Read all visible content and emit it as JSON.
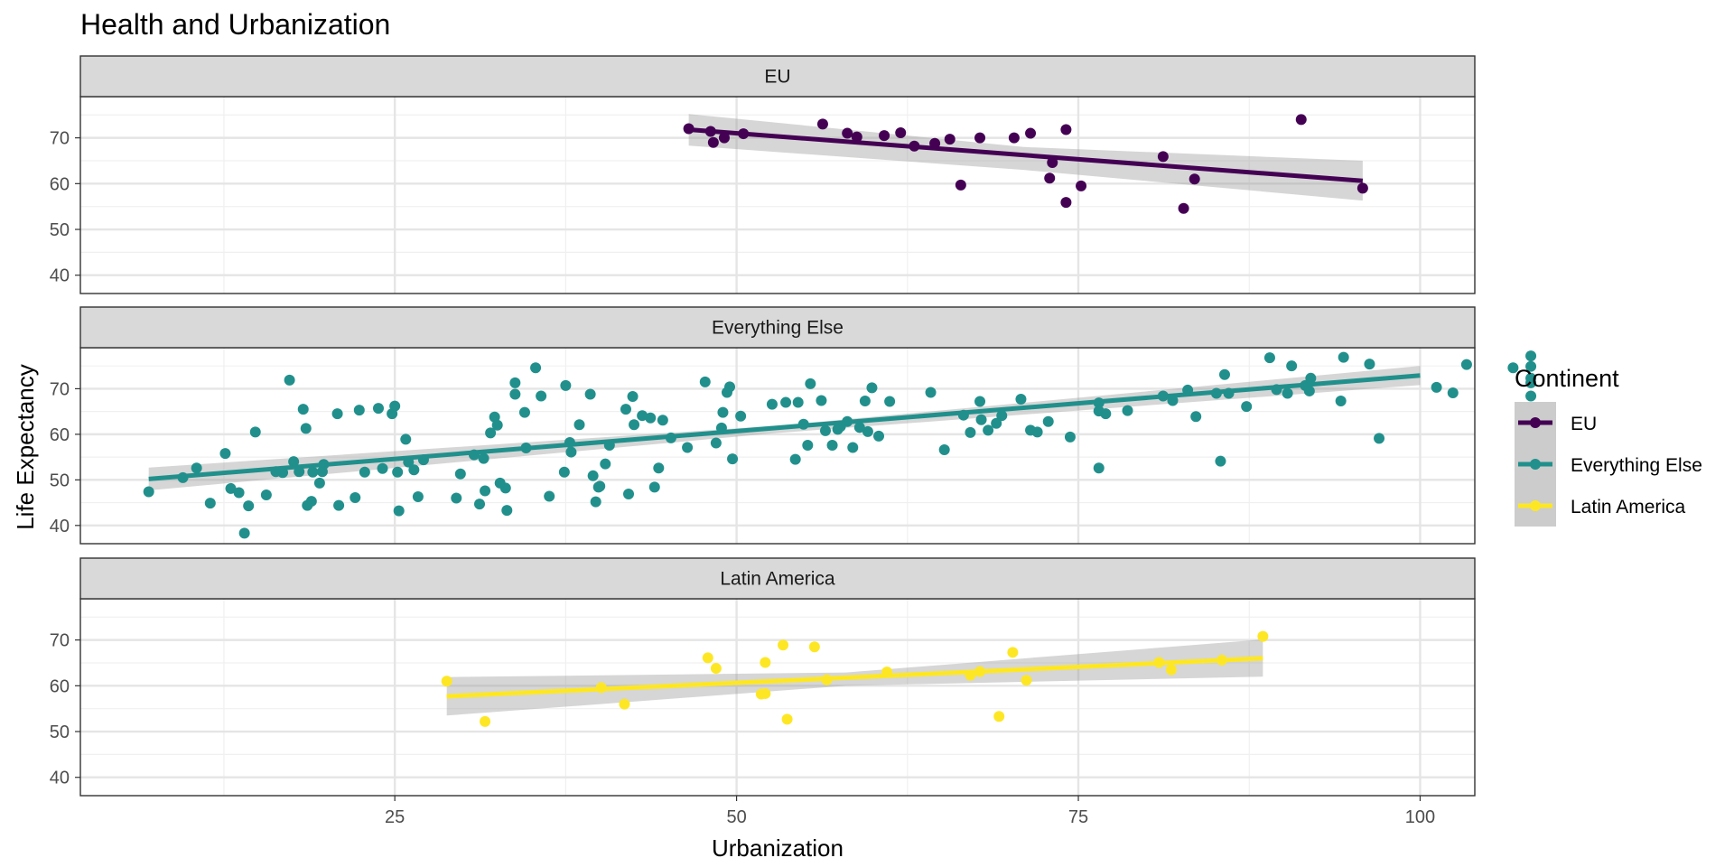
{
  "chart_data": {
    "type": "scatter",
    "title": "Health and Urbanization",
    "xlabel": "Urbanization",
    "ylabel": "Life Expectancy",
    "xlim": [
      2,
      104
    ],
    "ylim": [
      36,
      79
    ],
    "x_ticks": [
      25,
      50,
      75,
      100
    ],
    "y_ticks": [
      40,
      50,
      60,
      70
    ],
    "legend": {
      "title": "Continent",
      "position": "right"
    },
    "smooth": "linear fit with confidence band",
    "grid": true,
    "series": [
      {
        "name": "EU",
        "color": "#440154",
        "fit": {
          "x": [
            46.5,
            95.8
          ],
          "y": [
            71.8,
            60.6
          ]
        },
        "band": {
          "x": [
            46.5,
            71,
            95.8
          ],
          "upper": [
            75.2,
            68.0,
            65.0
          ],
          "lower": [
            68.3,
            63.0,
            56.3
          ]
        },
        "points": [
          [
            46.5,
            72.0
          ],
          [
            48.1,
            71.4
          ],
          [
            48.3,
            69.0
          ],
          [
            49.1,
            70.0
          ],
          [
            50.5,
            70.9
          ],
          [
            56.3,
            73.0
          ],
          [
            58.1,
            71.0
          ],
          [
            58.8,
            70.2
          ],
          [
            60.8,
            70.5
          ],
          [
            62.0,
            71.1
          ],
          [
            63.0,
            68.2
          ],
          [
            64.5,
            68.8
          ],
          [
            65.6,
            69.7
          ],
          [
            66.4,
            59.7
          ],
          [
            67.8,
            70.0
          ],
          [
            70.3,
            70.0
          ],
          [
            71.5,
            71.0
          ],
          [
            72.9,
            61.2
          ],
          [
            73.1,
            64.6
          ],
          [
            74.1,
            71.8
          ],
          [
            74.1,
            55.9
          ],
          [
            75.2,
            59.5
          ],
          [
            81.2,
            65.9
          ],
          [
            82.7,
            54.6
          ],
          [
            83.5,
            61.0
          ],
          [
            91.3,
            74.0
          ],
          [
            95.8,
            59.0
          ]
        ]
      },
      {
        "name": "Everything Else",
        "color": "#21908C",
        "fit": {
          "x": [
            7,
            100
          ],
          "y": [
            50.2,
            72.9
          ]
        },
        "band": {
          "x": [
            7,
            53,
            100
          ],
          "upper": [
            52.7,
            61.9,
            75.0
          ],
          "lower": [
            47.7,
            60.3,
            70.8
          ]
        },
        "points": [
          [
            7,
            47.4
          ],
          [
            9.5,
            50.5
          ],
          [
            10.5,
            52.6
          ],
          [
            11.5,
            44.9
          ],
          [
            12.6,
            55.8
          ],
          [
            13.0,
            48.1
          ],
          [
            13.6,
            47.2
          ],
          [
            14.0,
            38.3
          ],
          [
            14.3,
            44.3
          ],
          [
            14.8,
            60.5
          ],
          [
            15.6,
            46.7
          ],
          [
            16.3,
            51.8
          ],
          [
            16.8,
            51.6
          ],
          [
            17.3,
            71.9
          ],
          [
            17.6,
            54.0
          ],
          [
            18.0,
            51.8
          ],
          [
            18.3,
            65.5
          ],
          [
            18.5,
            61.3
          ],
          [
            18.6,
            44.4
          ],
          [
            18.9,
            45.3
          ],
          [
            19.0,
            51.7
          ],
          [
            19.5,
            49.3
          ],
          [
            19.7,
            51.8
          ],
          [
            19.8,
            53.4
          ],
          [
            20.8,
            64.5
          ],
          [
            20.9,
            44.4
          ],
          [
            22.1,
            46.1
          ],
          [
            22.4,
            65.3
          ],
          [
            22.8,
            51.7
          ],
          [
            23.8,
            65.7
          ],
          [
            24.1,
            52.5
          ],
          [
            24.8,
            64.5
          ],
          [
            25.0,
            66.2
          ],
          [
            25.2,
            51.7
          ],
          [
            25.3,
            43.2
          ],
          [
            25.8,
            58.9
          ],
          [
            26.0,
            53.9
          ],
          [
            26.4,
            52.2
          ],
          [
            26.7,
            46.3
          ],
          [
            27.1,
            54.4
          ],
          [
            29.5,
            46.0
          ],
          [
            29.8,
            51.3
          ],
          [
            30.8,
            55.5
          ],
          [
            31.2,
            44.7
          ],
          [
            31.5,
            54.7
          ],
          [
            31.6,
            47.6
          ],
          [
            32.0,
            60.3
          ],
          [
            32.3,
            63.8
          ],
          [
            32.5,
            62.0
          ],
          [
            32.7,
            49.3
          ],
          [
            33.1,
            48.2
          ],
          [
            33.2,
            43.3
          ],
          [
            33.8,
            68.8
          ],
          [
            33.8,
            71.3
          ],
          [
            34.5,
            64.8
          ],
          [
            34.6,
            57.0
          ],
          [
            35.3,
            74.6
          ],
          [
            35.7,
            68.4
          ],
          [
            36.3,
            46.4
          ],
          [
            37.4,
            51.7
          ],
          [
            37.5,
            70.7
          ],
          [
            37.8,
            58.2
          ],
          [
            37.9,
            56.1
          ],
          [
            38.5,
            62.1
          ],
          [
            39.3,
            68.8
          ],
          [
            39.5,
            50.9
          ],
          [
            39.7,
            45.2
          ],
          [
            39.9,
            48.4
          ],
          [
            40.0,
            48.6
          ],
          [
            40.4,
            53.5
          ],
          [
            40.7,
            57.6
          ],
          [
            41.9,
            65.5
          ],
          [
            42.1,
            46.9
          ],
          [
            42.4,
            68.3
          ],
          [
            42.5,
            62.1
          ],
          [
            43.1,
            64.1
          ],
          [
            43.7,
            63.6
          ],
          [
            44.0,
            48.4
          ],
          [
            44.3,
            52.6
          ],
          [
            44.6,
            63.1
          ],
          [
            45.2,
            59.2
          ],
          [
            46.4,
            57.1
          ],
          [
            47.7,
            71.5
          ],
          [
            48.5,
            58.1
          ],
          [
            48.9,
            61.4
          ],
          [
            49.0,
            64.8
          ],
          [
            49.3,
            69.2
          ],
          [
            49.5,
            70.4
          ],
          [
            49.7,
            54.6
          ],
          [
            50.3,
            64.0
          ],
          [
            52.6,
            66.6
          ],
          [
            53.6,
            67.0
          ],
          [
            54.3,
            54.5
          ],
          [
            54.5,
            67.0
          ],
          [
            54.9,
            62.2
          ],
          [
            55.2,
            57.6
          ],
          [
            55.4,
            71.1
          ],
          [
            56.2,
            67.4
          ],
          [
            56.5,
            60.8
          ],
          [
            57.0,
            57.6
          ],
          [
            57.4,
            61.1
          ],
          [
            57.6,
            61.7
          ],
          [
            58.1,
            62.8
          ],
          [
            58.5,
            57.1
          ],
          [
            59.0,
            61.5
          ],
          [
            59.4,
            67.3
          ],
          [
            59.6,
            60.6
          ],
          [
            59.9,
            70.2
          ],
          [
            60.4,
            59.6
          ],
          [
            61.2,
            67.2
          ],
          [
            64.2,
            69.2
          ],
          [
            65.2,
            56.6
          ],
          [
            66.6,
            64.2
          ],
          [
            67.1,
            60.4
          ],
          [
            67.8,
            67.2
          ],
          [
            67.9,
            63.2
          ],
          [
            68.4,
            60.9
          ],
          [
            69.0,
            62.4
          ],
          [
            69.4,
            64.1
          ],
          [
            70.8,
            67.7
          ],
          [
            71.5,
            60.9
          ],
          [
            72.0,
            60.5
          ],
          [
            72.8,
            62.8
          ],
          [
            74.4,
            59.4
          ],
          [
            76.5,
            65.1
          ],
          [
            76.5,
            66.9
          ],
          [
            76.5,
            52.6
          ],
          [
            77.0,
            64.5
          ],
          [
            78.6,
            65.2
          ],
          [
            81.2,
            68.4
          ],
          [
            81.9,
            67.4
          ],
          [
            83.0,
            69.7
          ],
          [
            83.6,
            63.9
          ],
          [
            85.1,
            69.0
          ],
          [
            85.4,
            54.1
          ],
          [
            85.7,
            73.1
          ],
          [
            86.0,
            69.0
          ],
          [
            87.3,
            66.1
          ],
          [
            89.0,
            76.8
          ],
          [
            89.5,
            69.8
          ],
          [
            90.3,
            69.0
          ],
          [
            90.6,
            75.0
          ],
          [
            91.6,
            70.7
          ],
          [
            91.9,
            69.5
          ],
          [
            92.0,
            72.3
          ],
          [
            94.2,
            67.3
          ],
          [
            94.4,
            76.9
          ],
          [
            96.3,
            75.4
          ],
          [
            97.0,
            59.1
          ],
          [
            101.2,
            70.3
          ],
          [
            102.4,
            69.1
          ],
          [
            103.4,
            75.3
          ],
          [
            106.8,
            74.6
          ],
          [
            108.1,
            77.2
          ],
          [
            108.1,
            74.9
          ],
          [
            108.1,
            72.3
          ],
          [
            108.1,
            71.3
          ],
          [
            108.1,
            68.4
          ],
          [
            108.1,
            60.2
          ]
        ]
      },
      {
        "name": "Latin America",
        "color": "#FDE725",
        "fit": {
          "x": [
            28.8,
            88.5
          ],
          "y": [
            57.7,
            66.0
          ]
        },
        "band": {
          "x": [
            28.8,
            58,
            88.5
          ],
          "upper": [
            61.9,
            62.9,
            70.1
          ],
          "lower": [
            53.5,
            60.0,
            62.0
          ]
        },
        "points": [
          [
            28.8,
            61.0
          ],
          [
            31.6,
            52.2
          ],
          [
            40.1,
            59.6
          ],
          [
            41.8,
            56.0
          ],
          [
            47.9,
            66.1
          ],
          [
            48.5,
            63.8
          ],
          [
            51.8,
            58.2
          ],
          [
            52.1,
            65.1
          ],
          [
            52.1,
            58.3
          ],
          [
            53.4,
            68.9
          ],
          [
            53.7,
            52.7
          ],
          [
            55.7,
            68.5
          ],
          [
            56.6,
            61.3
          ],
          [
            61.0,
            63.0
          ],
          [
            67.1,
            62.3
          ],
          [
            67.8,
            63.1
          ],
          [
            69.2,
            53.3
          ],
          [
            70.2,
            67.3
          ],
          [
            71.2,
            61.2
          ],
          [
            80.9,
            65.1
          ],
          [
            81.8,
            63.5
          ],
          [
            85.5,
            65.6
          ],
          [
            88.5,
            70.8
          ]
        ]
      }
    ]
  }
}
